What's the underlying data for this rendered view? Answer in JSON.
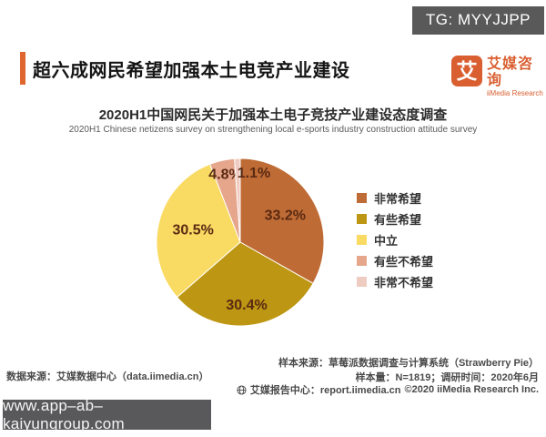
{
  "overlays": {
    "tg_badge": "TG: MYYJJPP",
    "url_badge": "www.app–ab–kaiyungroup.com"
  },
  "header": {
    "title": "超六成网民希望加强本土电竞产业建设"
  },
  "logo": {
    "glyph": "艾",
    "name_cn": "艾媒咨询",
    "name_en": "iiMedia Research"
  },
  "chart_data": {
    "type": "pie",
    "title": "2020H1中国网民关于加强本土电子竞技产业建设态度调查",
    "subtitle": "2020H1 Chinese netizens survey on strengthening local e-sports industry construction attitude survey",
    "categories": [
      "非常希望",
      "有些希望",
      "中立",
      "有些不希望",
      "非常不希望"
    ],
    "values": [
      33.2,
      30.4,
      30.5,
      4.8,
      1.1
    ],
    "labels": [
      "33.2%",
      "30.4%",
      "30.5%",
      "4.8%",
      "1.1%"
    ],
    "colors": [
      "#bf6b35",
      "#bd9613",
      "#f9da62",
      "#e5a68c",
      "#efccc2"
    ],
    "label_color": "#5a2a12",
    "legend_position": "right",
    "start_angle_deg": 0,
    "direction": "clockwise"
  },
  "footer": {
    "sample_source": "样本来源：草莓派数据调查与计算系统（Strawberry Pie）",
    "data_source": "数据来源：艾媒数据中心（data.iimedia.cn）",
    "sample_info": "样本量：N=1819；调研时间：2020年6月",
    "report_center": "艾媒报告中心：report.iimedia.cn",
    "copyright": "©2020 iiMedia Research Inc."
  }
}
